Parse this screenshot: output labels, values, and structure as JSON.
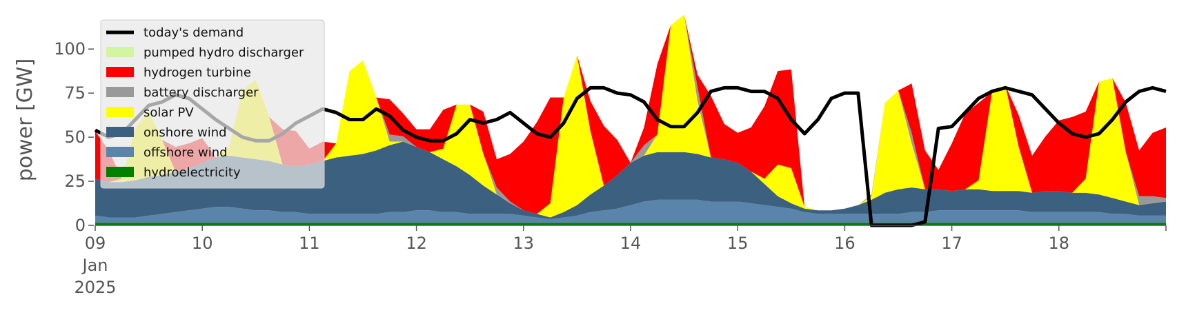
{
  "chart_data": {
    "type": "area",
    "title": "",
    "xlabel": "",
    "ylabel": "power [GW]",
    "x_start": "2025-01-09T00:00",
    "x_end": "2025-01-19T00:00",
    "x_step_hours": 3,
    "xlim": [
      "2025-01-09",
      "2025-01-19"
    ],
    "ylim": [
      0,
      120
    ],
    "grid": false,
    "legend_position": "top-left",
    "x_ticks": [
      {
        "date": "2025-01-09",
        "label": "09",
        "sub": [
          "Jan",
          "2025"
        ]
      },
      {
        "date": "2025-01-10",
        "label": "10",
        "sub": []
      },
      {
        "date": "2025-01-11",
        "label": "11",
        "sub": []
      },
      {
        "date": "2025-01-12",
        "label": "12",
        "sub": []
      },
      {
        "date": "2025-01-13",
        "label": "13",
        "sub": []
      },
      {
        "date": "2025-01-14",
        "label": "14",
        "sub": []
      },
      {
        "date": "2025-01-15",
        "label": "15",
        "sub": []
      },
      {
        "date": "2025-01-16",
        "label": "16",
        "sub": []
      },
      {
        "date": "2025-01-17",
        "label": "17",
        "sub": []
      },
      {
        "date": "2025-01-18",
        "label": "18",
        "sub": []
      }
    ],
    "y_ticks": [
      0,
      25,
      50,
      75,
      100
    ],
    "series": [
      {
        "name": "hydroelectricity",
        "color": "#008000",
        "values": [
          1.5,
          1.5,
          1.5,
          1.5,
          1.5,
          1.5,
          1.5,
          1.5,
          1.5,
          1.5,
          1.5,
          1.5,
          1.5,
          1.5,
          1.5,
          1.5,
          1.5,
          1.5,
          1.5,
          1.5,
          1.5,
          1.5,
          1.5,
          1.5,
          1.5,
          1.5,
          1.5,
          1.5,
          1.5,
          1.5,
          1.5,
          1.5,
          1.5,
          1.5,
          1.5,
          1.5,
          1.5,
          1.5,
          1.5,
          1.5,
          1.5,
          1.5,
          1.5,
          1.5,
          1.5,
          1.5,
          1.5,
          1.5,
          1.5,
          1.5,
          1.5,
          1.5,
          1.5,
          1.5,
          1.5,
          1.5,
          1.5,
          1.5,
          1.5,
          1.5,
          1.5,
          1.5,
          1.5,
          1.5,
          1.5,
          1.5,
          1.5,
          1.5,
          1.5,
          1.5,
          1.5,
          1.5,
          1.5,
          1.5,
          1.5,
          1.5,
          1.5,
          1.5,
          1.5,
          1.5,
          1.5
        ]
      },
      {
        "name": "offshore wind",
        "color": "#5b84aa",
        "values": [
          4,
          3,
          3,
          3,
          4,
          5,
          6,
          7,
          8,
          9,
          9,
          8,
          7,
          7,
          6,
          6,
          5,
          5,
          5,
          5,
          5,
          5,
          6,
          6,
          7,
          7,
          6,
          6,
          5,
          5,
          5,
          5,
          4,
          3,
          2,
          3,
          4,
          6,
          7,
          8,
          10,
          12,
          13,
          13,
          13,
          13,
          12,
          12,
          12,
          11,
          10,
          9,
          8,
          6,
          5,
          5,
          5,
          5,
          5,
          5,
          5,
          6,
          6,
          7,
          7,
          7,
          7,
          7,
          7,
          7,
          6,
          6,
          6,
          6,
          6,
          6,
          5,
          5,
          4,
          4,
          4
        ]
      },
      {
        "name": "onshore wind",
        "color": "#3c6080",
        "values": [
          21,
          20,
          20,
          21,
          22,
          22,
          23,
          24,
          26,
          28,
          29,
          29,
          29,
          28,
          27,
          26,
          28,
          30,
          32,
          33,
          34,
          36,
          38,
          40,
          36,
          33,
          30,
          26,
          22,
          16,
          11,
          6,
          3,
          2,
          1,
          3,
          6,
          10,
          14,
          19,
          24,
          26,
          27,
          27,
          27,
          26,
          25,
          24,
          22,
          18,
          12,
          6,
          3,
          2,
          2,
          2,
          3,
          5,
          8,
          12,
          14,
          14,
          13,
          12,
          11,
          12,
          12,
          11,
          11,
          11,
          11,
          12,
          12,
          11,
          11,
          10,
          9,
          7,
          6,
          7,
          8
        ]
      },
      {
        "name": "solar PV",
        "color": "#ffff00",
        "values": [
          0,
          0,
          2,
          30,
          37,
          20,
          0,
          0,
          0,
          0,
          5,
          38,
          45,
          25,
          0,
          0,
          0,
          0,
          8,
          48,
          53,
          30,
          2,
          0,
          0,
          0,
          6,
          35,
          40,
          18,
          0,
          0,
          0,
          0,
          8,
          65,
          85,
          36,
          0,
          0,
          0,
          0,
          10,
          72,
          78,
          30,
          0,
          0,
          0,
          0,
          3,
          18,
          20,
          1,
          0,
          0,
          0,
          0,
          2,
          51,
          56,
          25,
          0,
          0,
          0,
          0,
          5,
          56,
          60,
          25,
          0,
          0,
          0,
          0,
          8,
          64,
          68,
          28,
          0,
          0,
          0
        ]
      },
      {
        "name": "battery discharger",
        "color": "#999999",
        "values": [
          0,
          0,
          0,
          0,
          0,
          0,
          0,
          0,
          0,
          0,
          0,
          0,
          0,
          0,
          0,
          0,
          0,
          0,
          0,
          0,
          0,
          0,
          4,
          3,
          0,
          0,
          0,
          0,
          0,
          0,
          4,
          1,
          0,
          0,
          0,
          0,
          0,
          0,
          0,
          0,
          0,
          6,
          0,
          0,
          0,
          8,
          0,
          0,
          0,
          0,
          0,
          0,
          0,
          0,
          0,
          0,
          0,
          0,
          1,
          0,
          0,
          6,
          0,
          0,
          0,
          0,
          0,
          0,
          0,
          0,
          0,
          0,
          0,
          0,
          0,
          0,
          0,
          0,
          5,
          4,
          2
        ]
      },
      {
        "name": "hydrogen turbine",
        "color": "#ff0000",
        "values": [
          27,
          18,
          0,
          0,
          0,
          0,
          14,
          14,
          14,
          0,
          0,
          0,
          0,
          0,
          20,
          20,
          9,
          11,
          0,
          0,
          0,
          0,
          20,
          13,
          10,
          13,
          22,
          0,
          0,
          24,
          16,
          27,
          39,
          52,
          60,
          0,
          0,
          17,
          34,
          20,
          0,
          10,
          40,
          0,
          0,
          7,
          35,
          20,
          17,
          25,
          41,
          53,
          56,
          0,
          0,
          0,
          0,
          0,
          0,
          0,
          0,
          28,
          22,
          11,
          27,
          43,
          44,
          0,
          0,
          18,
          21,
          31,
          40,
          43,
          38,
          0,
          0,
          28,
          26,
          36,
          40
        ]
      },
      {
        "name": "pumped hydro discharger",
        "color": "#d4f5a0",
        "values": [
          0,
          0,
          0,
          0,
          0,
          0,
          0,
          0,
          0,
          0,
          0,
          0,
          0,
          0,
          0,
          0,
          0,
          0,
          0,
          0,
          0,
          0,
          0,
          0,
          0,
          0,
          0,
          0,
          0,
          0,
          0,
          0,
          0,
          0,
          0,
          0,
          0,
          0,
          0,
          0,
          0,
          0,
          0,
          0,
          0,
          0,
          0,
          0,
          0,
          0,
          0,
          0,
          0,
          0,
          0,
          0,
          0,
          0,
          0,
          0,
          0,
          0,
          0,
          0,
          0,
          0,
          0,
          0,
          0,
          0,
          0,
          0,
          0,
          0,
          0,
          0,
          0,
          0,
          0,
          0,
          0
        ]
      }
    ],
    "demand": {
      "name": "today's demand",
      "color": "#000000",
      "values": [
        54,
        50,
        52,
        60,
        68,
        70,
        74,
        72,
        66,
        60,
        55,
        50,
        48,
        48,
        52,
        58,
        62,
        66,
        64,
        60,
        60,
        66,
        62,
        54,
        50,
        48,
        48,
        52,
        60,
        58,
        60,
        64,
        58,
        52,
        50,
        58,
        72,
        78,
        78,
        75,
        74,
        70,
        60,
        56,
        56,
        64,
        76,
        78,
        78,
        76,
        76,
        72,
        60,
        52,
        60,
        72,
        75,
        75,
        0,
        0,
        0,
        0,
        2,
        55,
        56,
        64,
        72,
        76,
        78,
        76,
        74,
        66,
        58,
        52,
        50,
        52,
        60,
        70,
        76,
        78,
        76
      ]
    },
    "legend": {
      "entries": [
        {
          "label": "today's demand",
          "color": "#000000",
          "kind": "line"
        },
        {
          "label": "pumped hydro discharger",
          "color": "#d4f5a0",
          "kind": "patch"
        },
        {
          "label": "hydrogen turbine",
          "color": "#ff0000",
          "kind": "patch"
        },
        {
          "label": "battery discharger",
          "color": "#999999",
          "kind": "patch"
        },
        {
          "label": "solar PV",
          "color": "#ffff00",
          "kind": "patch"
        },
        {
          "label": "onshore wind",
          "color": "#3c6080",
          "kind": "patch"
        },
        {
          "label": "offshore wind",
          "color": "#5b84aa",
          "kind": "patch"
        },
        {
          "label": "hydroelectricity",
          "color": "#008000",
          "kind": "patch"
        }
      ]
    }
  }
}
